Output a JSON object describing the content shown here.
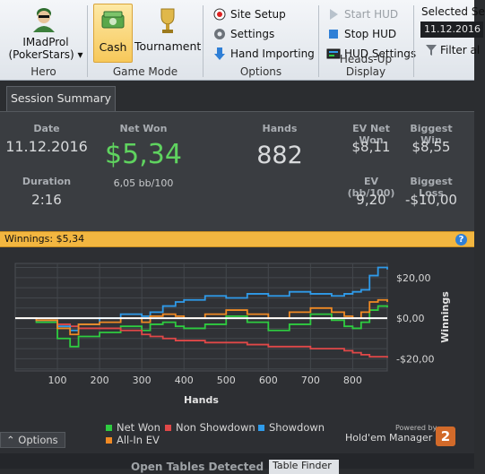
{
  "ribbon": {
    "hero": {
      "name_line1": "IMadProl",
      "name_line2": "(PokerStars) ▾",
      "group_label": "Hero",
      "icon": "hero-avatar-icon"
    },
    "game_mode": {
      "cash_label": "Cash",
      "tournament_label": "Tournament",
      "group_label": "Game Mode",
      "active": "Cash"
    },
    "options": {
      "site_setup": "Site Setup",
      "settings": "Settings",
      "hand_importing": "Hand Importing",
      "group_label": "Options"
    },
    "hud": {
      "start_hud": "Start HUD",
      "stop_hud": "Stop HUD",
      "hud_settings": "HUD Settings",
      "group_label": "Heads-Up Display"
    },
    "selected": {
      "label": "Selected Se",
      "date": "11.12.2016",
      "filter": "Filter al"
    }
  },
  "tab": {
    "label": "Session Summary"
  },
  "summary": {
    "date_label": "Date",
    "date_value": "11.12.2016",
    "duration_label": "Duration",
    "duration_value": "2:16",
    "net_won_label": "Net Won",
    "net_won_value": "$5,34",
    "net_won_bb": "6,05 bb/100",
    "hands_label": "Hands",
    "hands_value": "882",
    "ev_net_won_label": "EV Net Won",
    "ev_net_won_value": "$8,11",
    "biggest_win_label": "Biggest Win",
    "biggest_win_value": "$8,55",
    "ev_bb_label": "EV (bb/100)",
    "ev_bb_value": "9,20",
    "biggest_loss_label": "Biggest Loss",
    "biggest_loss_value": "-$10,00"
  },
  "winnings_bar": {
    "text": "Winnings: $5,34",
    "help": "?"
  },
  "chart_data": {
    "type": "line",
    "title": "",
    "xlabel": "Hands",
    "ylabel": "Winnings",
    "xlim": [
      0,
      882
    ],
    "ylim": [
      -26,
      27
    ],
    "x_ticks": [
      100,
      200,
      300,
      400,
      500,
      600,
      700,
      800
    ],
    "y_ticks": [
      20,
      0,
      -20
    ],
    "y_tick_labels": [
      "$20,00",
      "$0,00",
      "-$20,00"
    ],
    "grid": true,
    "legend_position": "bottom",
    "colors": {
      "Net Won": "#2ecc40",
      "Non Showdown": "#e04848",
      "Showdown": "#2f9bea",
      "All-In EV": "#f08a24",
      "zero_line": "#ffffff"
    },
    "x": [
      0,
      50,
      100,
      130,
      150,
      200,
      250,
      300,
      320,
      350,
      380,
      400,
      450,
      500,
      550,
      600,
      650,
      700,
      750,
      780,
      800,
      820,
      840,
      860,
      882
    ],
    "series": [
      {
        "name": "Net Won",
        "values": [
          0,
          -2,
          -10,
          -14,
          -9,
          -7,
          -4,
          -6,
          -3,
          -2,
          -4,
          -5,
          -3,
          1,
          -2,
          -6,
          -3,
          2,
          -1,
          -4,
          -5,
          -2,
          4,
          6,
          5.3
        ]
      },
      {
        "name": "Non Showdown",
        "values": [
          0,
          -1,
          -3,
          -4,
          -5,
          -5,
          -6,
          -8,
          -9,
          -10,
          -11,
          -11,
          -12,
          -12,
          -13,
          -14,
          -14,
          -15,
          -15,
          -16,
          -17,
          -18,
          -19,
          -19,
          -19.5
        ]
      },
      {
        "name": "Showdown",
        "values": [
          0,
          -1,
          -4,
          -6,
          -3,
          0,
          2,
          1,
          3,
          6,
          8,
          9,
          11,
          10,
          12,
          11,
          13,
          12,
          11,
          12,
          13,
          14,
          21,
          25,
          24
        ]
      },
      {
        "name": "All-In EV",
        "values": [
          0,
          -1,
          -5,
          -8,
          -3,
          -2,
          0,
          -2,
          1,
          2,
          1,
          0,
          2,
          4,
          2,
          0,
          3,
          5,
          3,
          1,
          0,
          3,
          8,
          9,
          8
        ]
      }
    ]
  },
  "legend": {
    "net_won": "Net Won",
    "non_showdown": "Non Showdown",
    "showdown": "Showdown",
    "all_in_ev": "All-In EV"
  },
  "branding": {
    "powered": "Powered by",
    "name": "Hold'em Manager",
    "badge": "2"
  },
  "options_button": {
    "label": "Options",
    "icon": "caret-up-icon"
  },
  "bottom_strip": {
    "open_tables": "Open Tables Detected",
    "table_finder": "Table Finder"
  }
}
